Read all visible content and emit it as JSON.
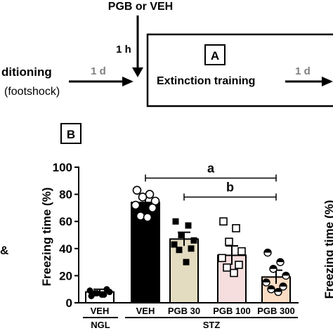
{
  "top_diagram": {
    "drug_label": "PGB or VEH",
    "interval_1h": "1 h",
    "panel_a_label": "A",
    "conditioning_label": "ditioning",
    "footshock_label": "(footshock)",
    "interval_1d_left": "1 d",
    "extinction_label": "Extinction training",
    "interval_1d_right": "1 d"
  },
  "edge_fragments": {
    "left_ampersand": "&",
    "right_axis_label": "Freezing time (%)"
  },
  "colors": {
    "veh_ngl": "#ffffff",
    "veh_stz": "#000000",
    "pgb30": "#e3dcc0",
    "pgb100": "#f7dede",
    "pgb300": "#f9dcc3"
  },
  "chart_data": {
    "type": "bar",
    "panel_label": "B",
    "ylabel": "Freezing time (%)",
    "ylim": [
      0,
      100
    ],
    "yticks": [
      0,
      20,
      40,
      60,
      80,
      100
    ],
    "categories": [
      "VEH",
      "VEH",
      "PGB 30",
      "PGB 100",
      "PGB 300"
    ],
    "groups": [
      {
        "label": "NGL",
        "categories": [
          "VEH"
        ]
      },
      {
        "label": "STZ",
        "categories": [
          "VEH",
          "PGB 30",
          "PGB 100",
          "PGB 300"
        ]
      }
    ],
    "values": [
      8,
      74,
      47,
      35,
      19
    ],
    "errors": [
      2,
      4,
      5,
      7,
      5
    ],
    "points": [
      [
        5,
        6,
        7,
        8,
        9,
        10,
        7,
        6
      ],
      [
        83,
        80,
        78,
        75,
        72,
        70,
        64,
        63
      ],
      [
        60,
        57,
        50,
        46,
        43,
        40,
        39,
        30
      ],
      [
        60,
        55,
        45,
        38,
        33,
        28,
        26,
        22
      ],
      [
        37,
        30,
        25,
        20,
        15,
        12,
        10,
        8
      ]
    ],
    "markers": [
      "circle-filled",
      "circle-open",
      "square-filled",
      "square-open",
      "circle-half"
    ],
    "significance": [
      {
        "label": "a",
        "from": 1,
        "to": 4,
        "y": 92
      },
      {
        "label": "b",
        "from": 2,
        "to": 4,
        "y": 78
      }
    ]
  }
}
